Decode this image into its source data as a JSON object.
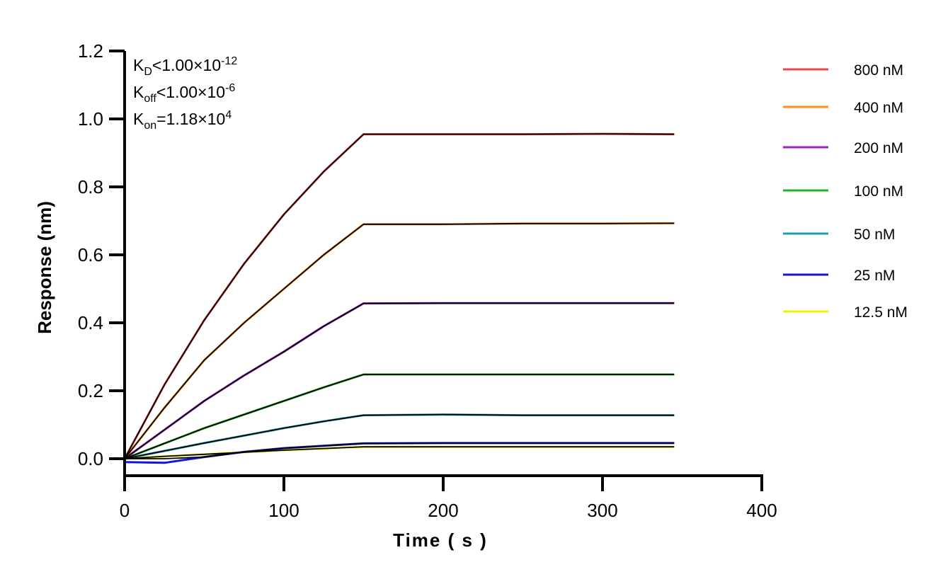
{
  "chart_data": {
    "type": "line",
    "xlabel": "Time ( s )",
    "ylabel": "Response (nm)",
    "xlim": [
      0,
      400
    ],
    "ylim": [
      -0.05,
      1.2
    ],
    "xticks": [
      0,
      100,
      200,
      300,
      400
    ],
    "yticks": [
      0.0,
      0.2,
      0.4,
      0.6,
      0.8,
      1.0,
      1.2
    ],
    "xtick_labels": [
      "0",
      "100",
      "200",
      "300",
      "400"
    ],
    "ytick_labels": [
      "0.0",
      "0.2",
      "0.4",
      "0.6",
      "0.8",
      "1.0",
      "1.2"
    ],
    "grid": false,
    "legend_placement": "right",
    "fit_color": "#000000",
    "annotations": {
      "kd": {
        "main": "K",
        "sub": "D",
        "rel": "<1.00×10",
        "sup": "-12"
      },
      "koff": {
        "main": "K",
        "sub": "off",
        "rel": "<1.00×10",
        "sup": "-6"
      },
      "kon": {
        "main": "K",
        "sub": "on",
        "rel": "=1.18×10",
        "sup": "4"
      }
    },
    "x": [
      0,
      25,
      50,
      75,
      100,
      125,
      150,
      200,
      250,
      300,
      345
    ],
    "series": [
      {
        "name": "800 nM",
        "color": "#EE4444",
        "values": [
          0,
          0.218,
          0.408,
          0.574,
          0.719,
          0.845,
          0.955,
          0.955,
          0.955,
          0.956,
          0.955
        ]
      },
      {
        "name": "400 nM",
        "color": "#FF8C1A",
        "values": [
          0,
          0.15,
          0.29,
          0.4,
          0.5,
          0.6,
          0.69,
          0.69,
          0.692,
          0.692,
          0.693
        ]
      },
      {
        "name": "200 nM",
        "color": "#A020D0",
        "values": [
          0,
          0.085,
          0.17,
          0.245,
          0.315,
          0.39,
          0.457,
          0.458,
          0.458,
          0.458,
          0.458
        ]
      },
      {
        "name": "100 nM",
        "color": "#22B422",
        "values": [
          0,
          0.045,
          0.09,
          0.13,
          0.17,
          0.21,
          0.248,
          0.248,
          0.248,
          0.248,
          0.248
        ]
      },
      {
        "name": "50 nM",
        "color": "#1E9BB4",
        "values": [
          0,
          0.023,
          0.046,
          0.068,
          0.09,
          0.11,
          0.128,
          0.13,
          0.128,
          0.128,
          0.128
        ]
      },
      {
        "name": "25 nM",
        "color": "#1414DC",
        "values": [
          -0.01,
          -0.012,
          0.005,
          0.02,
          0.031,
          0.038,
          0.045,
          0.046,
          0.046,
          0.046,
          0.046
        ]
      },
      {
        "name": "12.5 nM",
        "color": "#F0F000",
        "values": [
          0,
          0.007,
          0.013,
          0.019,
          0.025,
          0.03,
          0.035,
          0.035,
          0.035,
          0.035,
          0.035
        ]
      }
    ]
  }
}
